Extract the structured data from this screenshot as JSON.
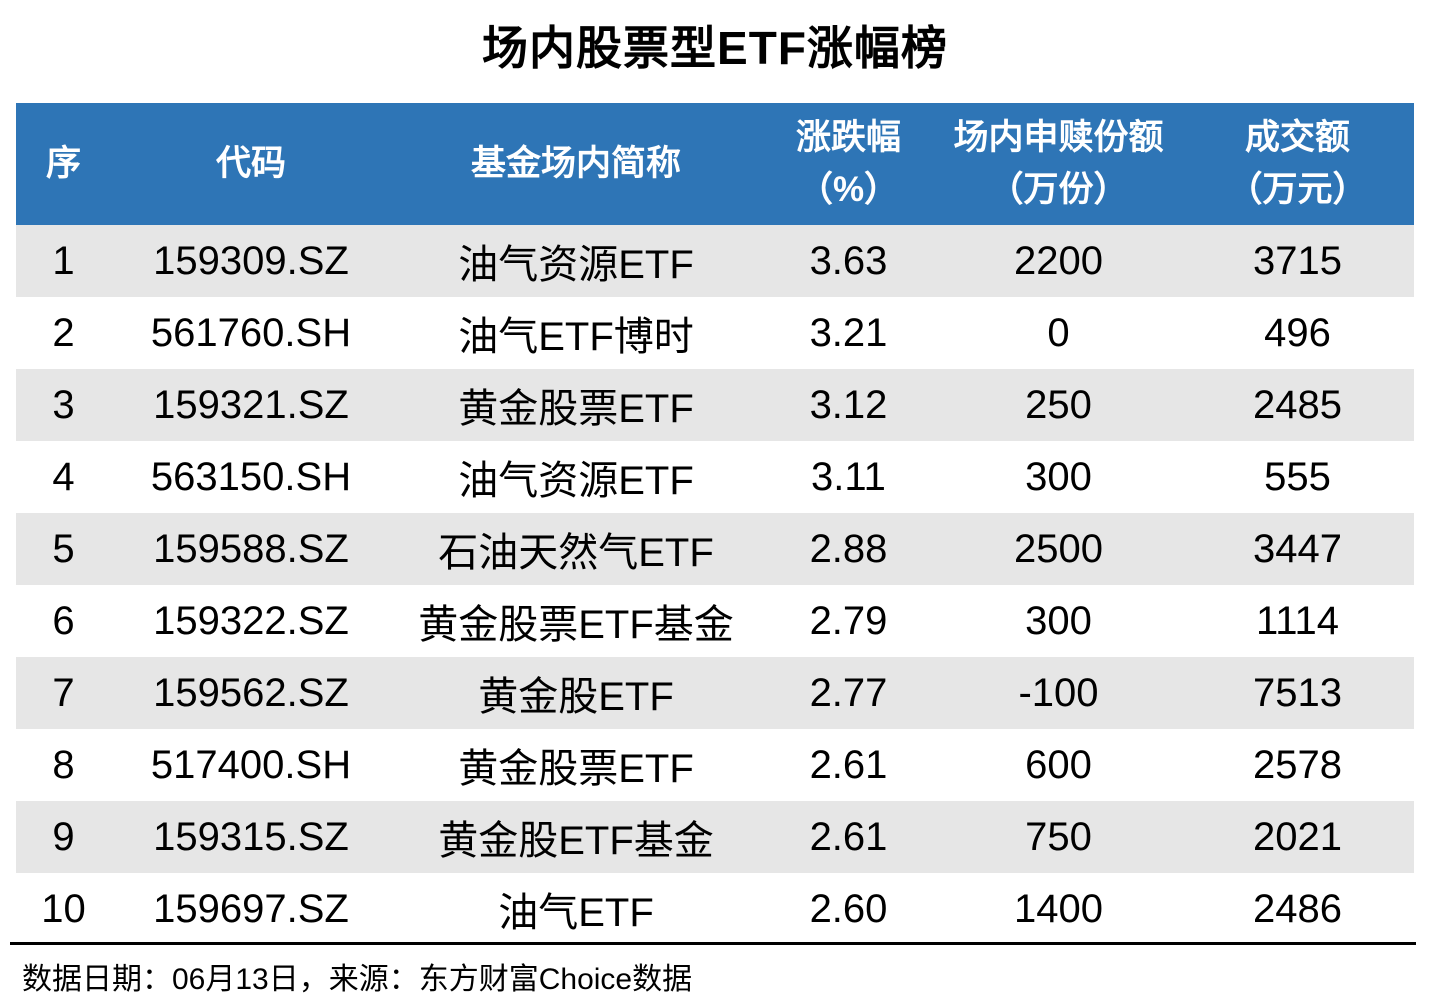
{
  "chart_data": {
    "type": "table",
    "title": "场内股票型ETF涨幅榜",
    "columns": [
      {
        "label": "序",
        "unit": ""
      },
      {
        "label": "代码",
        "unit": ""
      },
      {
        "label": "基金场内简称",
        "unit": ""
      },
      {
        "label": "涨跌幅",
        "unit": "（%）"
      },
      {
        "label": "场内申赎份额",
        "unit": "（万份）"
      },
      {
        "label": "成交额",
        "unit": "（万元）"
      }
    ],
    "rows": [
      [
        "1",
        "159309.SZ",
        "油气资源ETF",
        "3.63",
        "2200",
        "3715"
      ],
      [
        "2",
        "561760.SH",
        "油气ETF博时",
        "3.21",
        "0",
        "496"
      ],
      [
        "3",
        "159321.SZ",
        "黄金股票ETF",
        "3.12",
        "250",
        "2485"
      ],
      [
        "4",
        "563150.SH",
        "油气资源ETF",
        "3.11",
        "300",
        "555"
      ],
      [
        "5",
        "159588.SZ",
        "石油天然气ETF",
        "2.88",
        "2500",
        "3447"
      ],
      [
        "6",
        "159322.SZ",
        "黄金股票ETF基金",
        "2.79",
        "300",
        "1114"
      ],
      [
        "7",
        "159562.SZ",
        "黄金股ETF",
        "2.77",
        "-100",
        "7513"
      ],
      [
        "8",
        "517400.SH",
        "黄金股票ETF",
        "2.61",
        "600",
        "2578"
      ],
      [
        "9",
        "159315.SZ",
        "黄金股ETF基金",
        "2.61",
        "750",
        "2021"
      ],
      [
        "10",
        "159697.SZ",
        "油气ETF",
        "2.60",
        "1400",
        "2486"
      ]
    ],
    "footnote": "数据日期：06月13日，来源：东方财富Choice数据",
    "layout": {
      "header_bg": "#2E75B6",
      "header_text_color": "#FFFFFF",
      "odd_row_bg": "#E6E6E6",
      "even_row_bg": "#FFFFFF",
      "body_text_color": "#000000"
    }
  }
}
